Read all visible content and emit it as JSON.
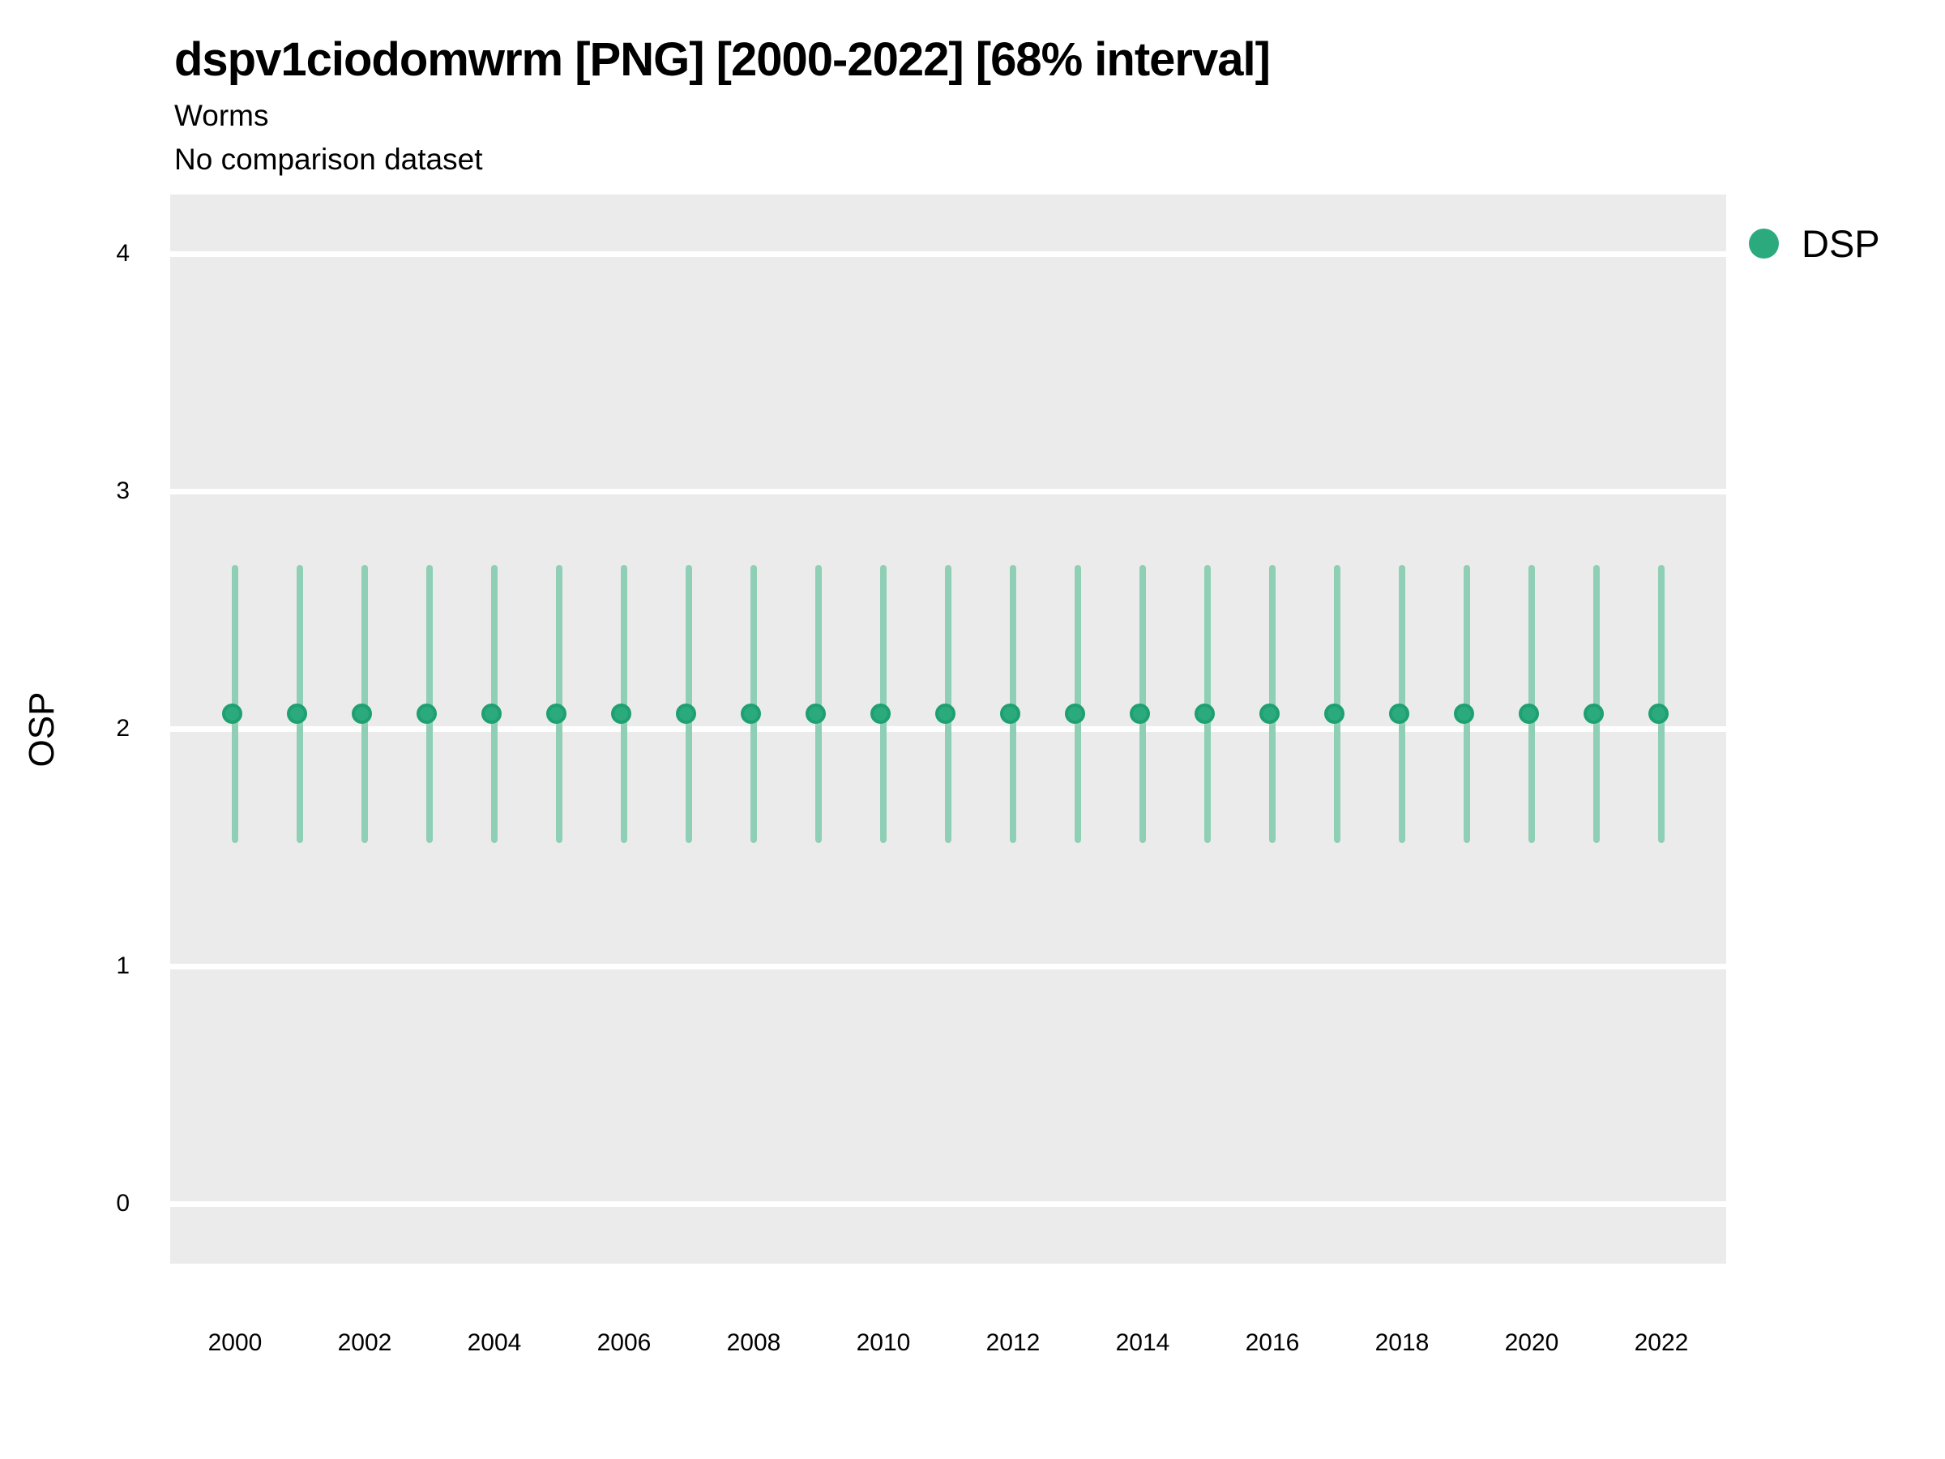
{
  "header": {
    "title": "dspv1ciodomwrm [PNG] [2000-2022] [68% interval]",
    "subtitle": "Worms",
    "comparison_note": "No comparison dataset"
  },
  "legend": {
    "position": "right",
    "items": [
      {
        "label": "DSP",
        "marker": "circle-icon",
        "color": "#2BAB7D"
      }
    ]
  },
  "colors": {
    "point_fill": "#2BAB7D",
    "point_border": "#1FA070",
    "interval_bar": "#8FCFB5",
    "panel_background": "#EBEBEB",
    "gridline": "#FFFFFF",
    "text": "#000000"
  },
  "chart_data": {
    "type": "scatter",
    "title": "dspv1ciodomwrm [PNG] [2000-2022] [68% interval]",
    "subtitle": "Worms",
    "note": "No comparison dataset",
    "xlabel": "",
    "ylabel": "OSP",
    "interval": "68%",
    "grid": "horizontal-only",
    "legend_position": "right",
    "ylim": [
      -0.25,
      4.25
    ],
    "yticks": [
      0,
      1,
      2,
      3,
      4
    ],
    "xticks": [
      2000,
      2002,
      2004,
      2006,
      2008,
      2010,
      2012,
      2014,
      2016,
      2018,
      2020,
      2022
    ],
    "x": [
      2000,
      2001,
      2002,
      2003,
      2004,
      2005,
      2006,
      2007,
      2008,
      2009,
      2010,
      2011,
      2012,
      2013,
      2014,
      2015,
      2016,
      2017,
      2018,
      2019,
      2020,
      2021,
      2022
    ],
    "series": [
      {
        "name": "DSP",
        "values": [
          2.05,
          2.05,
          2.05,
          2.05,
          2.05,
          2.05,
          2.05,
          2.05,
          2.05,
          2.05,
          2.05,
          2.05,
          2.05,
          2.05,
          2.05,
          2.05,
          2.05,
          2.05,
          2.05,
          2.05,
          2.05,
          2.05,
          2.05
        ],
        "lower_68": [
          1.52,
          1.52,
          1.52,
          1.52,
          1.52,
          1.52,
          1.52,
          1.52,
          1.52,
          1.52,
          1.52,
          1.52,
          1.52,
          1.52,
          1.52,
          1.52,
          1.52,
          1.52,
          1.52,
          1.52,
          1.52,
          1.52,
          1.52
        ],
        "upper_68": [
          2.69,
          2.69,
          2.69,
          2.69,
          2.69,
          2.69,
          2.69,
          2.69,
          2.69,
          2.69,
          2.69,
          2.69,
          2.69,
          2.69,
          2.69,
          2.69,
          2.69,
          2.69,
          2.69,
          2.69,
          2.69,
          2.69,
          2.69
        ]
      }
    ]
  }
}
